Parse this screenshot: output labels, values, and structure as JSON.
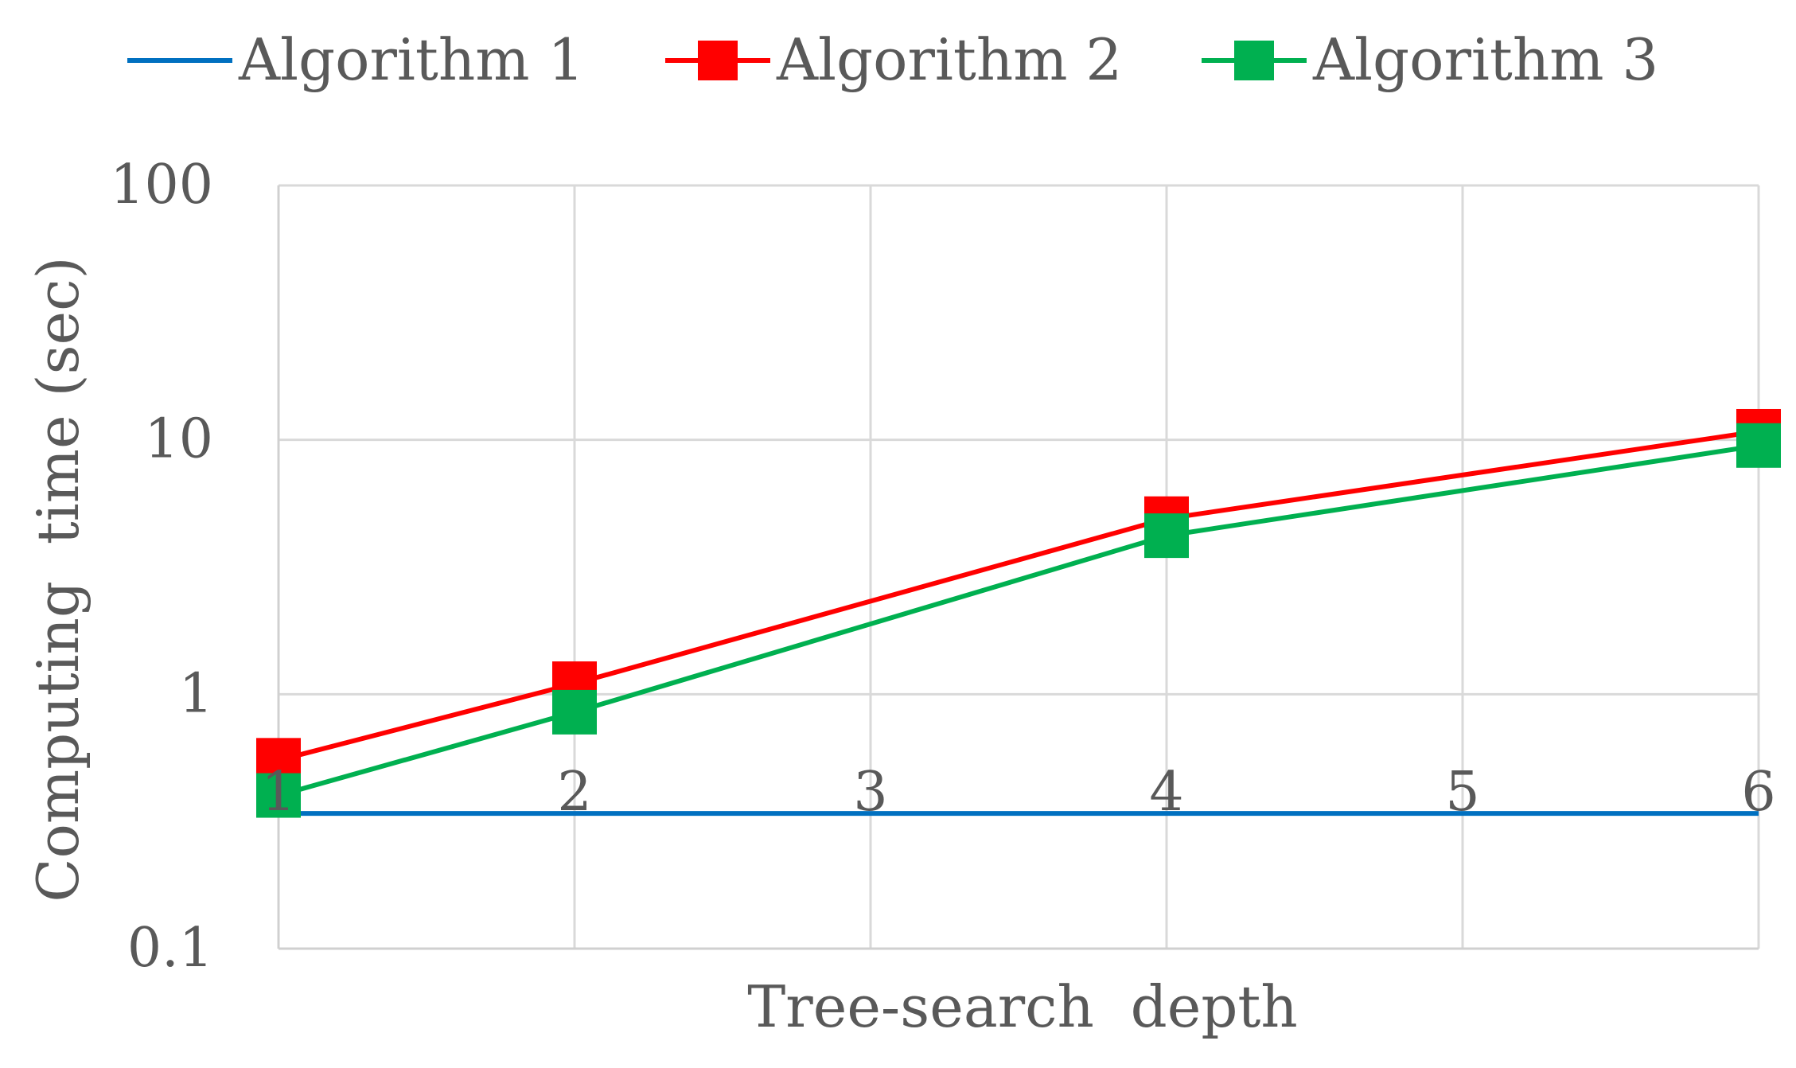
{
  "chart_data": {
    "type": "line",
    "title": "",
    "xlabel": "Tree-search  depth",
    "ylabel": "Computing  time (sec)",
    "y_scale": "log",
    "ylim": [
      0.1,
      100
    ],
    "y_ticks": [
      "0.1",
      "1",
      "10",
      "100"
    ],
    "categories": [
      "1",
      "2",
      "3",
      "4",
      "5",
      "6"
    ],
    "grid": true,
    "legend_position": "top",
    "series": [
      {
        "name": "Algorithm 1",
        "color": "#0070C0",
        "marker": "none",
        "points": [
          {
            "x": "1",
            "y": 0.34
          },
          {
            "x": "6",
            "y": 0.34
          }
        ]
      },
      {
        "name": "Algorithm 2",
        "color": "#FF0000",
        "marker": "square",
        "points": [
          {
            "x": "1",
            "y": 0.55
          },
          {
            "x": "2",
            "y": 1.1
          },
          {
            "x": "4",
            "y": 4.9
          },
          {
            "x": "6",
            "y": 10.8
          }
        ]
      },
      {
        "name": "Algorithm 3",
        "color": "#00B050",
        "marker": "square",
        "points": [
          {
            "x": "1",
            "y": 0.4
          },
          {
            "x": "2",
            "y": 0.85
          },
          {
            "x": "4",
            "y": 4.2
          },
          {
            "x": "6",
            "y": 9.5
          }
        ]
      }
    ]
  }
}
